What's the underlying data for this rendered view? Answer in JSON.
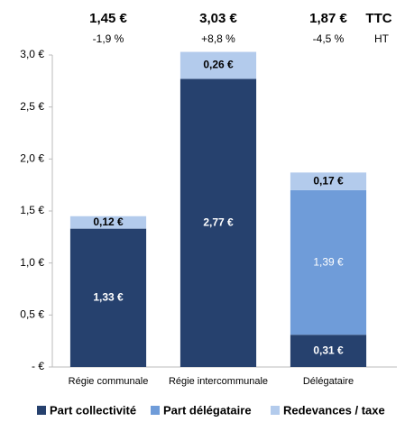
{
  "chart_data": {
    "type": "stacked_bar",
    "categories": [
      "Régie communale",
      "Régie intercommunale",
      "Délégataire"
    ],
    "series": [
      {
        "name": "Part collectivité",
        "color": "#26416e",
        "values": [
          1.33,
          2.77,
          0.31
        ],
        "value_labels": [
          "1,33 €",
          "2,77 €",
          "0,31 €"
        ]
      },
      {
        "name": "Part délégataire",
        "color": "#6f9cd9",
        "values": [
          null,
          null,
          1.39
        ],
        "value_labels": [
          null,
          null,
          "1,39 €"
        ]
      },
      {
        "name": "Redevances / taxe",
        "color": "#b3cbec",
        "values": [
          0.12,
          0.26,
          0.17
        ],
        "value_labels": [
          "0,12 €",
          "0,26 €",
          "0,17 €"
        ]
      }
    ],
    "totals": [
      "1,45 €",
      "3,03 €",
      "1,87 €"
    ],
    "totals_label": "TTC",
    "changes": [
      "-1,9 %",
      "+8,8 %",
      "-4,5 %"
    ],
    "changes_label": "HT",
    "ylim": [
      0,
      3
    ],
    "yticks": [
      {
        "value": 0,
        "label": "- €"
      },
      {
        "value": 0.5,
        "label": "0,5 €"
      },
      {
        "value": 1,
        "label": "1,0 €"
      },
      {
        "value": 1.5,
        "label": "1,5 €"
      },
      {
        "value": 2,
        "label": "2,0 €"
      },
      {
        "value": 2.5,
        "label": "2,5 €"
      },
      {
        "value": 3,
        "label": "3,0 €"
      }
    ],
    "grid": false
  }
}
